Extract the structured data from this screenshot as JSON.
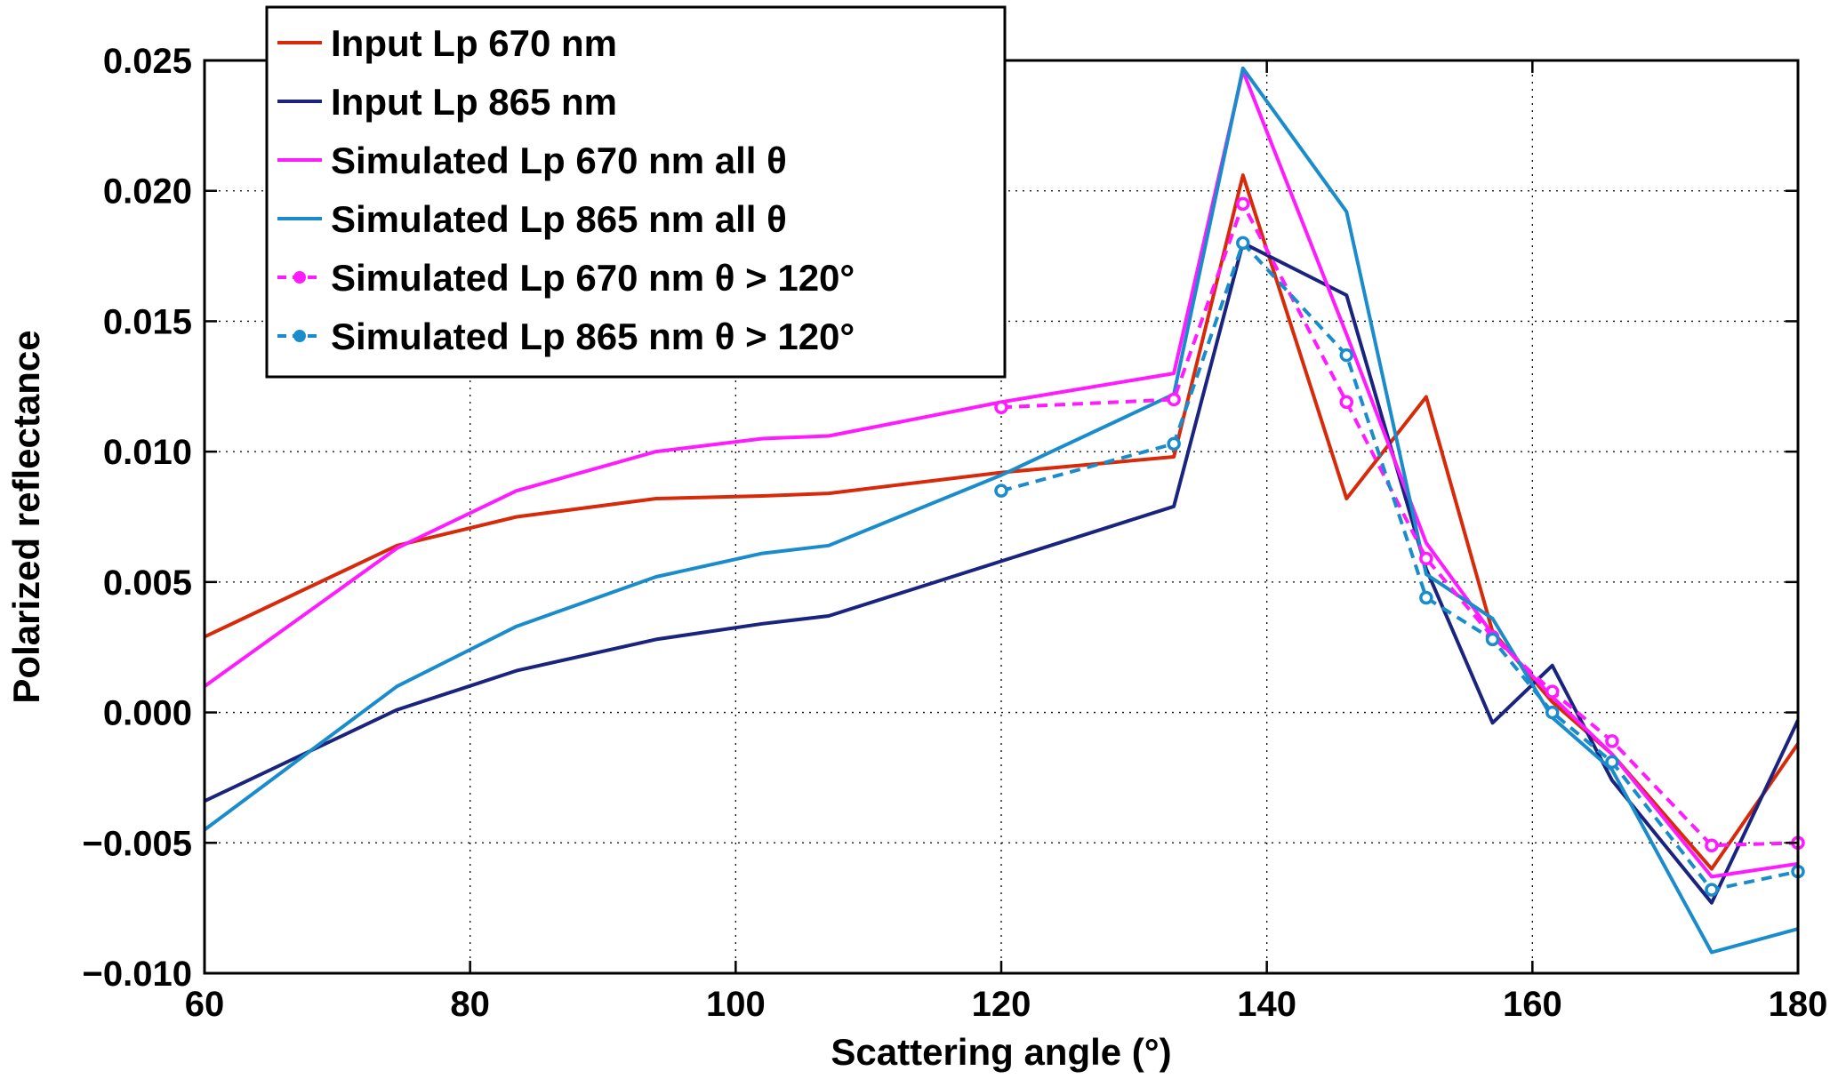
{
  "chart_data": {
    "type": "line",
    "title": "",
    "xlabel": "Scattering angle (°)",
    "ylabel": "Polarized reflectance",
    "xlim": [
      60,
      180
    ],
    "ylim": [
      -0.01,
      0.025
    ],
    "xticks": [
      "60",
      "80",
      "100",
      "120",
      "140",
      "160",
      "180"
    ],
    "yticks": [
      "−0.010",
      "−0.005",
      "0.000",
      "0.005",
      "0.010",
      "0.015",
      "0.020",
      "0.025"
    ],
    "grid": true,
    "legend_position": "top-left",
    "series": [
      {
        "name": "Input Lp 670 nm",
        "color": "#d62a0a",
        "style": "solid",
        "x": [
          60,
          74.5,
          83.5,
          94,
          102,
          107,
          120,
          133,
          138.2,
          146,
          152,
          157,
          161.5,
          166,
          173.5,
          180
        ],
        "y": [
          0.0029,
          0.0064,
          0.0075,
          0.0082,
          0.0083,
          0.0084,
          0.0092,
          0.0098,
          0.0206,
          0.0082,
          0.0121,
          0.0031,
          0.0004,
          -0.0016,
          -0.006,
          -0.0012
        ]
      },
      {
        "name": "Input Lp 865 nm",
        "color": "#1a237e",
        "style": "solid",
        "x": [
          60,
          74.5,
          83.5,
          94,
          102,
          107,
          120,
          133,
          138.2,
          146,
          152,
          157,
          161.5,
          166,
          173.5,
          180
        ],
        "y": [
          -0.0034,
          0.0001,
          0.0016,
          0.0028,
          0.0034,
          0.0037,
          0.0058,
          0.0079,
          0.018,
          0.016,
          0.0055,
          -0.0004,
          0.0018,
          -0.0026,
          -0.0073,
          -0.0003
        ]
      },
      {
        "name": "Simulated Lp 670 nm all θ",
        "color": "#ff1aff",
        "style": "solid",
        "x": [
          60,
          74.5,
          83.5,
          94,
          102,
          107,
          120,
          133,
          138.2,
          146,
          152,
          157,
          161.5,
          166,
          173.5,
          180
        ],
        "y": [
          0.001,
          0.0063,
          0.0085,
          0.01,
          0.0105,
          0.0106,
          0.0119,
          0.013,
          0.0246,
          0.0145,
          0.0065,
          0.003,
          0.0006,
          -0.0016,
          -0.0063,
          -0.0058
        ]
      },
      {
        "name": "Simulated Lp 865 nm all θ",
        "color": "#1a8ccc",
        "style": "solid",
        "x": [
          60,
          74.5,
          83.5,
          94,
          102,
          107,
          120,
          133,
          138.2,
          146,
          152,
          157,
          161.5,
          166,
          173.5,
          180
        ],
        "y": [
          -0.0045,
          0.001,
          0.0033,
          0.0052,
          0.0061,
          0.0064,
          0.0091,
          0.0122,
          0.0247,
          0.0192,
          0.0053,
          0.0036,
          -0.0002,
          -0.0022,
          -0.0092,
          -0.0083
        ]
      },
      {
        "name": "Simulated Lp 670 nm θ > 120°",
        "color": "#ff1aff",
        "style": "dashed-markers",
        "x": [
          120,
          133,
          138.2,
          146,
          152,
          157,
          161.5,
          166,
          173.5,
          180
        ],
        "y": [
          0.0117,
          0.012,
          0.0195,
          0.0119,
          0.0059,
          0.0029,
          0.0008,
          -0.0011,
          -0.0051,
          -0.005
        ]
      },
      {
        "name": "Simulated Lp 865 nm θ > 120°",
        "color": "#1a8ccc",
        "style": "dashed-markers",
        "x": [
          120,
          133,
          138.2,
          146,
          152,
          157,
          161.5,
          166,
          173.5,
          180
        ],
        "y": [
          0.0085,
          0.0103,
          0.018,
          0.0137,
          0.0044,
          0.0028,
          0.0,
          -0.0019,
          -0.0068,
          -0.0061
        ]
      }
    ]
  }
}
